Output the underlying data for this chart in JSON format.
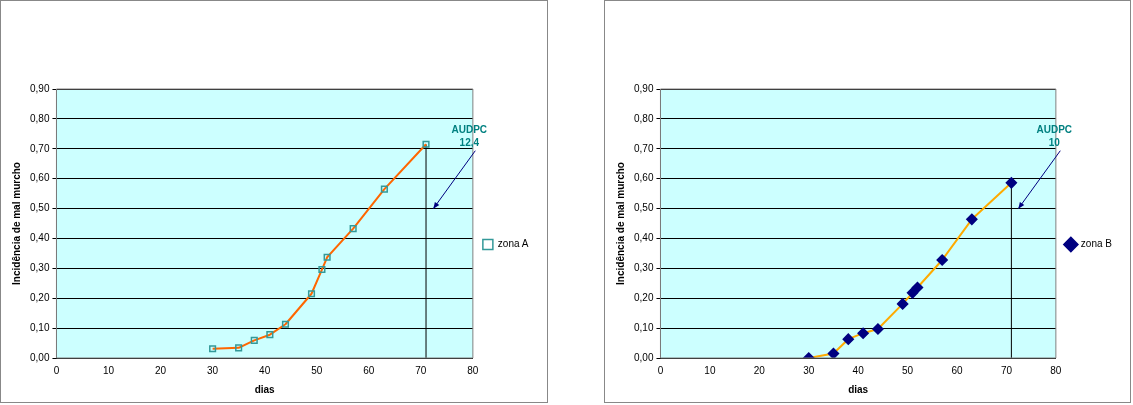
{
  "chart_data": [
    {
      "type": "line",
      "xlabel": "dias",
      "ylabel": "Incidência de mal murcho",
      "series": [
        {
          "name": "zona A",
          "color": "#ff6600",
          "x": [
            30,
            35,
            38,
            41,
            44,
            49,
            51,
            52,
            57,
            63,
            71
          ],
          "values": [
            0.031,
            0.034,
            0.059,
            0.078,
            0.113,
            0.215,
            0.296,
            0.337,
            0.433,
            0.565,
            0.715
          ]
        },
        {
          "color": "#000000",
          "x": [
            71,
            71
          ],
          "values": [
            0,
            0.715
          ],
          "marker": "none"
        }
      ],
      "xlim": [
        0,
        80
      ],
      "xticks": [
        0,
        10,
        20,
        30,
        40,
        50,
        60,
        70,
        80
      ],
      "ylim": [
        0,
        0.9
      ],
      "yticks": [
        {
          "value": 0,
          "label": "0,00"
        },
        {
          "value": 0.1,
          "label": "0,10"
        },
        {
          "value": 0.2,
          "label": "0,20"
        },
        {
          "value": 0.3,
          "label": "0,30"
        },
        {
          "value": 0.4,
          "label": "0,40"
        },
        {
          "value": 0.5,
          "label": "0,50"
        },
        {
          "value": 0.6,
          "label": "0,60"
        },
        {
          "value": 0.7,
          "label": "0,70"
        },
        {
          "value": 0.8,
          "label": "0,80"
        },
        {
          "value": 0.9,
          "label": "0,90"
        }
      ],
      "annotations": [
        "AUDPC\n12,4"
      ],
      "grid": "y",
      "legend": "right",
      "marker": "square",
      "line_style": "solid"
    },
    {
      "type": "line",
      "xlabel": "dias",
      "ylabel": "Incidência de mal murcho",
      "series": [
        {
          "name": "zona B",
          "color": "#ffaa00",
          "x": [
            30,
            35,
            38,
            41,
            44,
            49,
            51,
            52,
            57,
            63,
            71
          ],
          "values": [
            0,
            0.015,
            0.063,
            0.083,
            0.097,
            0.181,
            0.218,
            0.236,
            0.328,
            0.464,
            0.586
          ]
        },
        {
          "color": "#000000",
          "x": [
            71,
            71
          ],
          "values": [
            0,
            0.586
          ],
          "marker": "none"
        }
      ],
      "xlim": [
        0,
        80
      ],
      "xticks": [
        0,
        10,
        20,
        30,
        40,
        50,
        60,
        70,
        80
      ],
      "ylim": [
        0,
        0.9
      ],
      "yticks": [
        {
          "value": 0,
          "label": "0,00"
        },
        {
          "value": 0.1,
          "label": "0,10"
        },
        {
          "value": 0.2,
          "label": "0,20"
        },
        {
          "value": 0.3,
          "label": "0,30"
        },
        {
          "value": 0.4,
          "label": "0,40"
        },
        {
          "value": 0.5,
          "label": "0,50"
        },
        {
          "value": 0.6,
          "label": "0,60"
        },
        {
          "value": 0.7,
          "label": "0,70"
        },
        {
          "value": 0.8,
          "label": "0,80"
        },
        {
          "value": 0.9,
          "label": "0,90"
        }
      ],
      "annotations": [
        "AUDPC\n10"
      ],
      "grid": "y",
      "legend": "right",
      "marker": "diamond",
      "line_style": "solid"
    }
  ]
}
